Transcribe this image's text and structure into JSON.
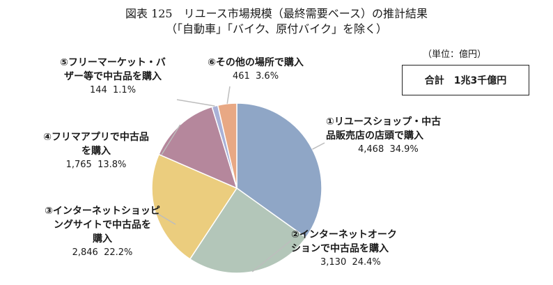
{
  "title_line1": "図表 125　リユース市場規模（最終需要ベース）の推計結果",
  "title_line2": "（「自動車」「バイク、原付バイク」を除く）",
  "unit_label": "（単位：億円）",
  "total_label": "合計　1兆3千億円",
  "chart_data": {
    "type": "pie",
    "start_angle_deg": 0,
    "direction": "clockwise",
    "slices": [
      {
        "lines": [
          "①リユースショップ・中古",
          "品販売店の店頭で購入"
        ],
        "value": 4468,
        "value_text": "4,468",
        "percent": "34.9%",
        "color": "#8fa6c6"
      },
      {
        "lines": [
          "②インターネットオーク",
          "ションで中古品を購入"
        ],
        "value": 3130,
        "value_text": "3,130",
        "percent": "24.4%",
        "color": "#b3c6b9"
      },
      {
        "lines": [
          "③インターネットショッピ",
          "ングサイトで中古品を",
          "購入"
        ],
        "value": 2846,
        "value_text": "2,846",
        "percent": "22.2%",
        "color": "#ebcd7e"
      },
      {
        "lines": [
          "④フリマアプリで中古品",
          "を購入"
        ],
        "value": 1765,
        "value_text": "1,765",
        "percent": "13.8%",
        "color": "#b5879c"
      },
      {
        "lines": [
          "⑤フリーマーケット・バ",
          "ザー等で中古品を購入"
        ],
        "value": 144,
        "value_text": "144",
        "percent": "1.1%",
        "color": "#a9b1d7"
      },
      {
        "lines": [
          "⑥その他の場所で購入"
        ],
        "value": 461,
        "value_text": "461",
        "percent": "3.6%",
        "color": "#e8a884"
      }
    ]
  }
}
